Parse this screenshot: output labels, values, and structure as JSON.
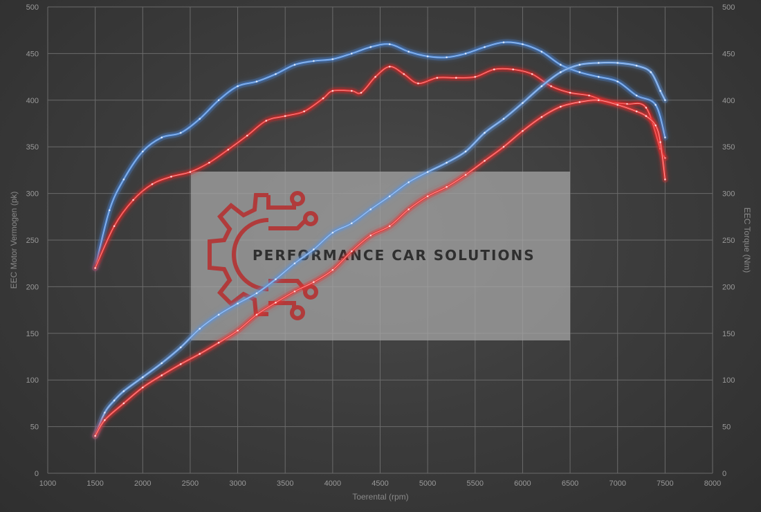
{
  "chart_data": {
    "type": "line",
    "xlabel": "Toerental (rpm)",
    "ylabel_left": "EEC Motor Vermogen (pk)",
    "ylabel_right": "EEC Torque (Nm)",
    "xlim": [
      1000,
      8000
    ],
    "ylim": [
      0,
      500
    ],
    "x_ticks": [
      1000,
      1500,
      2000,
      2500,
      3000,
      3500,
      4000,
      4500,
      5000,
      5500,
      6000,
      6500,
      7000,
      7500,
      8000
    ],
    "y_ticks": [
      0,
      50,
      100,
      150,
      200,
      250,
      300,
      350,
      400,
      450,
      500
    ],
    "grid": true,
    "series": [
      {
        "color": "#4a86d6",
        "axis": "right",
        "x": [
          1500,
          1650,
          1800,
          2000,
          2200,
          2400,
          2600,
          2800,
          3000,
          3200,
          3400,
          3600,
          3800,
          4000,
          4200,
          4400,
          4600,
          4800,
          5000,
          5200,
          5400,
          5600,
          5800,
          6000,
          6200,
          6400,
          6600,
          6800,
          7000,
          7200,
          7400,
          7500
        ],
        "y": [
          220,
          282,
          315,
          345,
          360,
          365,
          380,
          400,
          415,
          420,
          428,
          438,
          442,
          444,
          450,
          457,
          460,
          452,
          447,
          446,
          450,
          457,
          462,
          460,
          452,
          438,
          430,
          425,
          420,
          405,
          395,
          360
        ]
      },
      {
        "color": "#e02a2a",
        "axis": "right",
        "x": [
          1500,
          1700,
          1900,
          2100,
          2300,
          2500,
          2700,
          2900,
          3100,
          3300,
          3500,
          3700,
          3900,
          4000,
          4200,
          4300,
          4450,
          4600,
          4750,
          4900,
          5100,
          5300,
          5500,
          5700,
          5900,
          6100,
          6300,
          6500,
          6700,
          6900,
          7100,
          7300,
          7450,
          7500
        ],
        "y": [
          220,
          265,
          293,
          310,
          318,
          323,
          333,
          347,
          362,
          378,
          383,
          388,
          402,
          410,
          410,
          408,
          425,
          436,
          428,
          418,
          424,
          424,
          425,
          433,
          433,
          428,
          415,
          408,
          405,
          398,
          396,
          392,
          348,
          338
        ]
      },
      {
        "color": "#5f95dc",
        "axis": "left",
        "x": [
          1500,
          1600,
          1700,
          1800,
          2000,
          2200,
          2400,
          2600,
          2800,
          3000,
          3200,
          3400,
          3600,
          3800,
          4000,
          4200,
          4400,
          4600,
          4800,
          5000,
          5200,
          5400,
          5600,
          5800,
          6000,
          6200,
          6400,
          6600,
          6800,
          7000,
          7200,
          7350,
          7450,
          7500
        ],
        "y": [
          40,
          65,
          78,
          88,
          103,
          118,
          135,
          155,
          170,
          182,
          193,
          208,
          225,
          240,
          258,
          268,
          283,
          297,
          312,
          323,
          333,
          345,
          365,
          380,
          397,
          415,
          430,
          438,
          440,
          440,
          437,
          430,
          410,
          400
        ]
      },
      {
        "color": "#e83434",
        "axis": "left",
        "x": [
          1500,
          1600,
          1800,
          2000,
          2200,
          2400,
          2600,
          2800,
          3000,
          3200,
          3400,
          3600,
          3800,
          4000,
          4200,
          4400,
          4600,
          4800,
          5000,
          5200,
          5400,
          5600,
          5800,
          6000,
          6200,
          6400,
          6600,
          6800,
          7000,
          7200,
          7300,
          7400,
          7450,
          7500
        ],
        "y": [
          40,
          57,
          75,
          92,
          105,
          117,
          128,
          140,
          153,
          170,
          183,
          195,
          205,
          218,
          238,
          255,
          265,
          283,
          297,
          307,
          320,
          335,
          350,
          367,
          382,
          393,
          398,
          400,
          395,
          388,
          383,
          373,
          355,
          315
        ]
      }
    ]
  },
  "watermark": {
    "brand_text": "PERFORMANCE CAR SOLUTIONS",
    "brand_color": "#b03b3b"
  }
}
